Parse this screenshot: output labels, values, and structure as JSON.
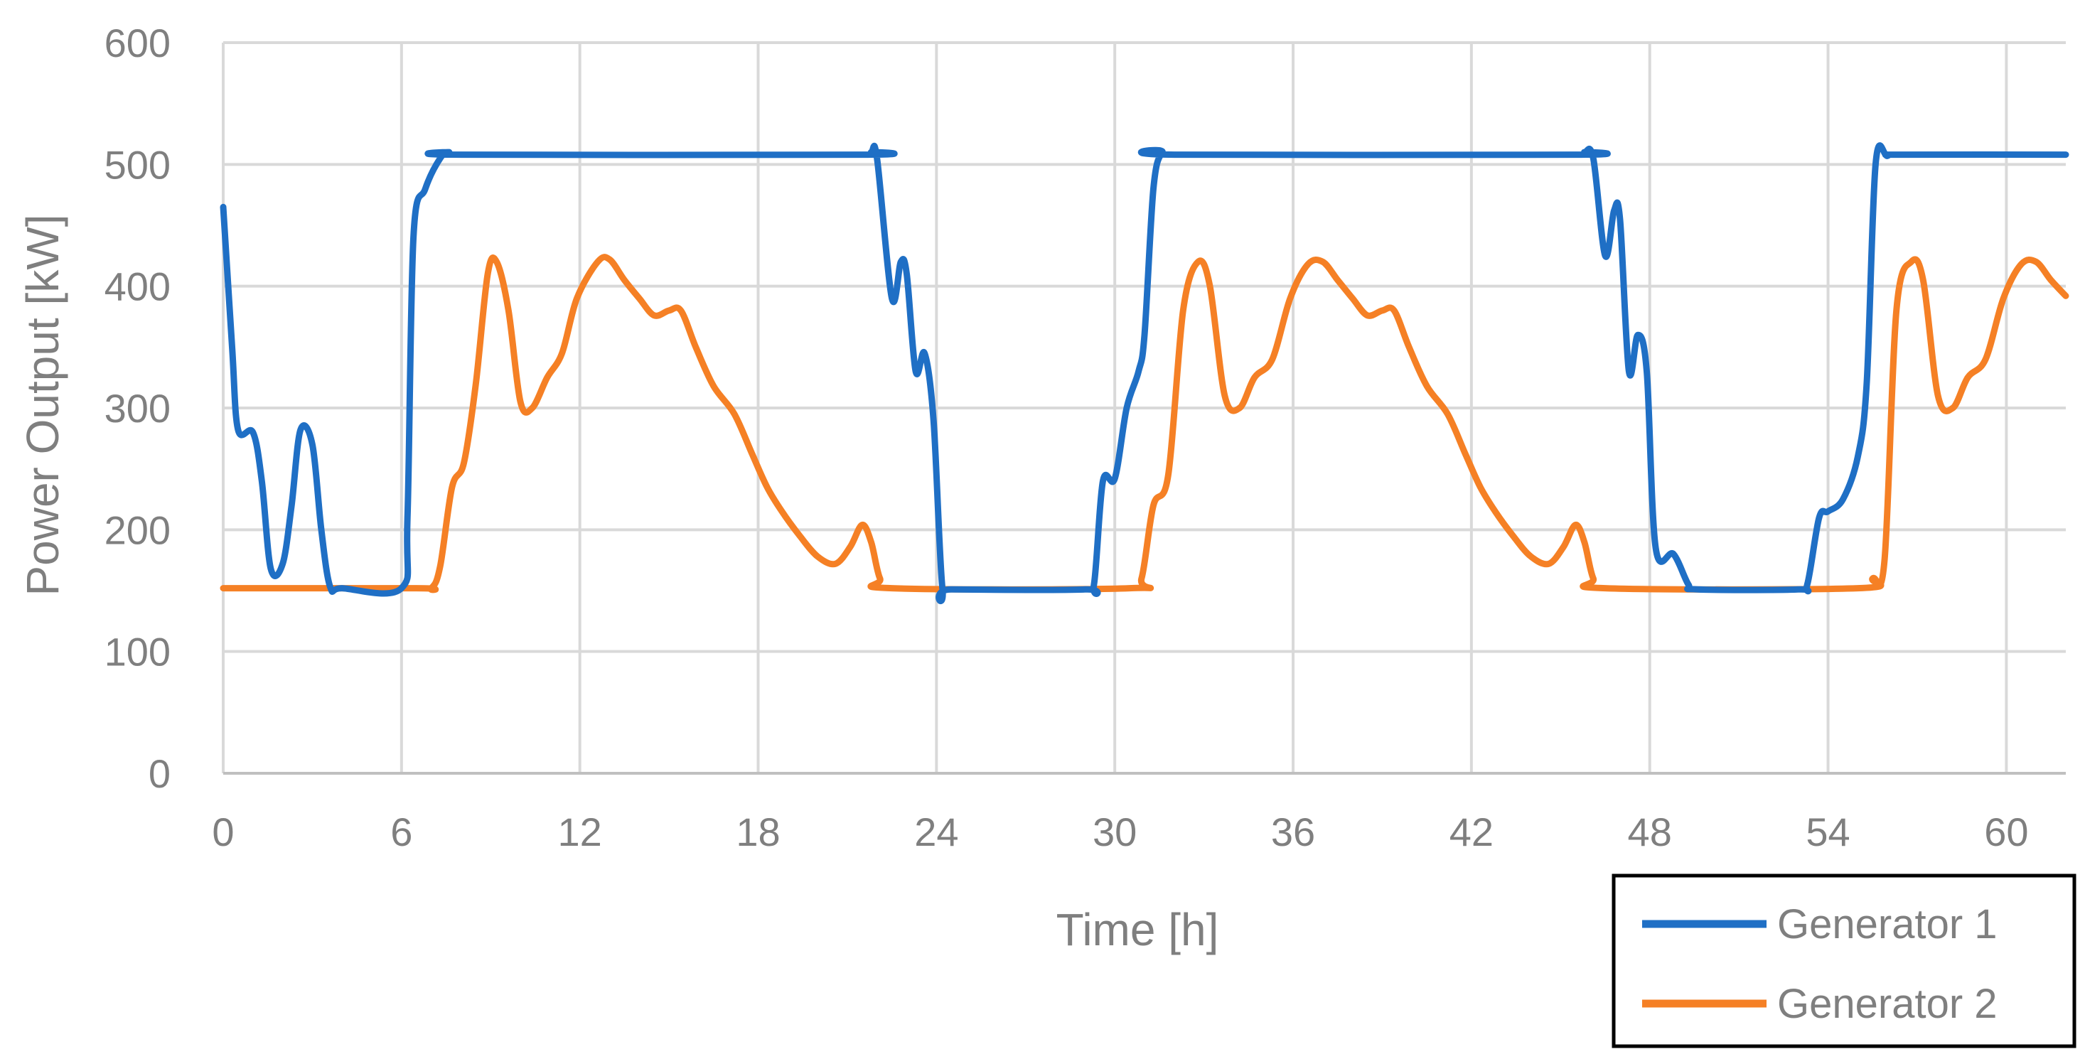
{
  "chart_data": {
    "type": "line",
    "xlabel": "Time [h]",
    "ylabel": "Power Output [kW]",
    "xlim": [
      0,
      62
    ],
    "ylim": [
      0,
      600
    ],
    "x_ticks": [
      0,
      6,
      12,
      18,
      24,
      30,
      36,
      42,
      48,
      54,
      60
    ],
    "y_ticks": [
      0,
      100,
      200,
      300,
      400,
      500,
      600
    ],
    "grid": true,
    "legend_position": "bottom-right",
    "series": [
      {
        "name": "Generator 1",
        "color": "#1f6fc5",
        "points": [
          [
            0,
            465
          ],
          [
            0.3,
            350
          ],
          [
            0.5,
            282
          ],
          [
            1,
            280
          ],
          [
            1.3,
            240
          ],
          [
            1.6,
            168
          ],
          [
            2,
            172
          ],
          [
            2.3,
            220
          ],
          [
            2.6,
            282
          ],
          [
            3,
            270
          ],
          [
            3.3,
            200
          ],
          [
            3.6,
            153
          ],
          [
            4,
            152
          ],
          [
            6,
            152
          ],
          [
            6.2,
            210
          ],
          [
            6.4,
            440
          ],
          [
            6.8,
            480
          ],
          [
            7.3,
            505
          ],
          [
            7.6,
            510
          ],
          [
            8,
            508
          ],
          [
            21.5,
            508
          ],
          [
            21.8,
            510
          ],
          [
            22,
            505
          ],
          [
            22.5,
            390
          ],
          [
            22.8,
            420
          ],
          [
            23,
            410
          ],
          [
            23.3,
            330
          ],
          [
            23.6,
            345
          ],
          [
            23.9,
            290
          ],
          [
            24.2,
            152
          ],
          [
            24.5,
            151
          ],
          [
            29,
            151
          ],
          [
            29.3,
            155
          ],
          [
            29.6,
            240
          ],
          [
            30,
            242
          ],
          [
            30.4,
            300
          ],
          [
            30.8,
            330
          ],
          [
            31,
            360
          ],
          [
            31.3,
            480
          ],
          [
            31.6,
            510
          ],
          [
            32,
            508
          ],
          [
            45.5,
            508
          ],
          [
            45.8,
            510
          ],
          [
            46.1,
            505
          ],
          [
            46.5,
            425
          ],
          [
            46.8,
            462
          ],
          [
            47,
            455
          ],
          [
            47.3,
            330
          ],
          [
            47.6,
            360
          ],
          [
            47.9,
            330
          ],
          [
            48.2,
            185
          ],
          [
            48.8,
            180
          ],
          [
            49.3,
            155
          ],
          [
            49.6,
            151
          ],
          [
            53,
            151
          ],
          [
            53.3,
            155
          ],
          [
            53.7,
            210
          ],
          [
            54,
            215
          ],
          [
            54.5,
            225
          ],
          [
            55,
            260
          ],
          [
            55.3,
            320
          ],
          [
            55.6,
            500
          ],
          [
            56,
            507
          ],
          [
            56.5,
            508
          ],
          [
            62,
            508
          ]
        ]
      },
      {
        "name": "Generator 2",
        "color": "#f58025",
        "points": [
          [
            0,
            152
          ],
          [
            6.5,
            152
          ],
          [
            7,
            152
          ],
          [
            7.3,
            170
          ],
          [
            7.7,
            235
          ],
          [
            8.1,
            255
          ],
          [
            8.5,
            320
          ],
          [
            8.9,
            410
          ],
          [
            9.2,
            420
          ],
          [
            9.6,
            380
          ],
          [
            10,
            305
          ],
          [
            10.4,
            300
          ],
          [
            10.9,
            325
          ],
          [
            11.4,
            345
          ],
          [
            11.9,
            390
          ],
          [
            12.6,
            420
          ],
          [
            13,
            422
          ],
          [
            13.5,
            405
          ],
          [
            14,
            390
          ],
          [
            14.5,
            376
          ],
          [
            15,
            380
          ],
          [
            15.4,
            380
          ],
          [
            15.9,
            350
          ],
          [
            16.5,
            318
          ],
          [
            17.2,
            295
          ],
          [
            17.8,
            262
          ],
          [
            18.3,
            235
          ],
          [
            18.8,
            215
          ],
          [
            19.4,
            195
          ],
          [
            20,
            178
          ],
          [
            20.6,
            172
          ],
          [
            21.1,
            186
          ],
          [
            21.5,
            204
          ],
          [
            21.8,
            190
          ],
          [
            22.1,
            160
          ],
          [
            22.5,
            152
          ],
          [
            30.5,
            152
          ],
          [
            30.9,
            160
          ],
          [
            31.3,
            220
          ],
          [
            31.8,
            245
          ],
          [
            32.3,
            380
          ],
          [
            32.8,
            420
          ],
          [
            33.2,
            400
          ],
          [
            33.7,
            310
          ],
          [
            34.2,
            300
          ],
          [
            34.7,
            325
          ],
          [
            35.3,
            340
          ],
          [
            35.9,
            390
          ],
          [
            36.5,
            418
          ],
          [
            37,
            420
          ],
          [
            37.5,
            405
          ],
          [
            38,
            390
          ],
          [
            38.5,
            376
          ],
          [
            39,
            380
          ],
          [
            39.4,
            380
          ],
          [
            39.9,
            350
          ],
          [
            40.5,
            318
          ],
          [
            41.2,
            295
          ],
          [
            41.8,
            262
          ],
          [
            42.3,
            235
          ],
          [
            42.8,
            215
          ],
          [
            43.4,
            195
          ],
          [
            44,
            178
          ],
          [
            44.6,
            172
          ],
          [
            45.1,
            186
          ],
          [
            45.5,
            204
          ],
          [
            45.8,
            190
          ],
          [
            46.1,
            160
          ],
          [
            46.5,
            152
          ],
          [
            55,
            152
          ],
          [
            55.5,
            160
          ],
          [
            55.9,
            175
          ],
          [
            56.3,
            380
          ],
          [
            56.8,
            420
          ],
          [
            57.2,
            405
          ],
          [
            57.7,
            310
          ],
          [
            58.2,
            300
          ],
          [
            58.7,
            325
          ],
          [
            59.3,
            340
          ],
          [
            59.9,
            390
          ],
          [
            60.5,
            418
          ],
          [
            61,
            420
          ],
          [
            61.5,
            405
          ],
          [
            62,
            392
          ]
        ]
      }
    ]
  }
}
